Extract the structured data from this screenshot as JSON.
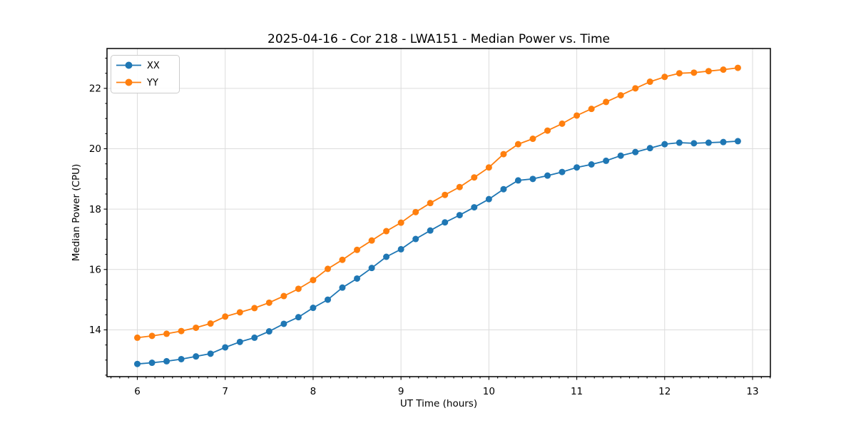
{
  "chart_data": {
    "type": "line",
    "title": "2025-04-16 - Cor 218 - LWA151 - Median Power vs. Time",
    "xlabel": "UT Time (hours)",
    "ylabel": "Median Power (CPU)",
    "xlim": [
      5.655,
      13.203
    ],
    "ylim": [
      12.45,
      23.32
    ],
    "x_ticks": [
      6,
      7,
      8,
      9,
      10,
      11,
      12,
      13
    ],
    "y_ticks": [
      14,
      16,
      18,
      20,
      22
    ],
    "x_minor_step": 0.1,
    "y_minor_step": 0.5,
    "grid": true,
    "legend_position": "upper left",
    "background_color": "#ffffff",
    "grid_color": "#dcdcdc",
    "x": [
      6.0,
      6.167,
      6.333,
      6.5,
      6.667,
      6.833,
      7.0,
      7.167,
      7.333,
      7.5,
      7.667,
      7.833,
      8.0,
      8.167,
      8.333,
      8.5,
      8.667,
      8.833,
      9.0,
      9.167,
      9.333,
      9.5,
      9.667,
      9.833,
      10.0,
      10.167,
      10.333,
      10.5,
      10.667,
      10.833,
      11.0,
      11.167,
      11.333,
      11.5,
      11.667,
      11.833,
      12.0,
      12.167,
      12.333,
      12.5,
      12.667,
      12.833
    ],
    "series": [
      {
        "name": "XX",
        "color": "#1f77b4",
        "values": [
          12.87,
          12.91,
          12.96,
          13.03,
          13.12,
          13.21,
          13.42,
          13.6,
          13.74,
          13.95,
          14.2,
          14.42,
          14.73,
          15.0,
          15.4,
          15.7,
          16.05,
          16.42,
          16.67,
          17.01,
          17.29,
          17.56,
          17.8,
          18.06,
          18.33,
          18.66,
          18.95,
          19.0,
          19.11,
          19.23,
          19.38,
          19.48,
          19.6,
          19.77,
          19.89,
          20.02,
          20.15,
          20.2,
          20.18,
          20.2,
          20.22,
          20.25
        ]
      },
      {
        "name": "YY",
        "color": "#ff7f0e",
        "values": [
          13.74,
          13.8,
          13.87,
          13.96,
          14.07,
          14.21,
          14.44,
          14.58,
          14.72,
          14.9,
          15.12,
          15.36,
          15.65,
          16.02,
          16.32,
          16.65,
          16.96,
          17.27,
          17.55,
          17.9,
          18.2,
          18.47,
          18.73,
          19.05,
          19.38,
          19.82,
          20.15,
          20.33,
          20.6,
          20.83,
          21.1,
          21.32,
          21.55,
          21.77,
          22.0,
          22.22,
          22.38,
          22.5,
          22.52,
          22.57,
          22.62,
          22.68
        ]
      }
    ]
  }
}
